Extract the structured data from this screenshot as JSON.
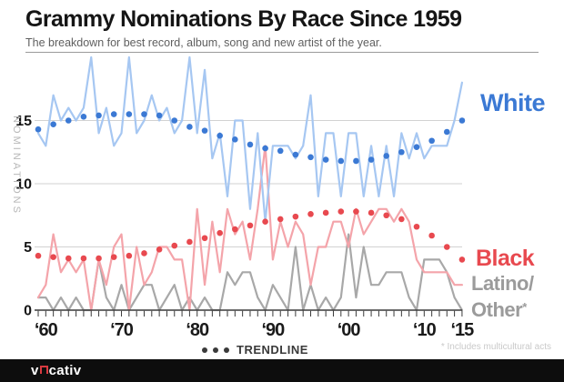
{
  "header": {
    "title": "Grammy Nominations By Race Since 1959",
    "subtitle": "The breakdown for best record, album, song and new artist of the year."
  },
  "chart_data": {
    "type": "line",
    "title": "Grammy Nominations By Race Since 1959",
    "ylabel": "NOMINATIONS",
    "ylim": [
      0,
      20
    ],
    "y_ticks": [
      0,
      5,
      10,
      15
    ],
    "x_range": [
      1959,
      2015
    ],
    "x_step": 1,
    "grid": "horizontal",
    "x_ticks": [
      {
        "year": 1960,
        "label": "‘60"
      },
      {
        "year": 1970,
        "label": "‘70"
      },
      {
        "year": 1980,
        "label": "‘80"
      },
      {
        "year": 1990,
        "label": "‘90"
      },
      {
        "year": 2000,
        "label": "‘00"
      },
      {
        "year": 2010,
        "label": "‘10"
      },
      {
        "year": 2015,
        "label": "‘15"
      }
    ],
    "series": [
      {
        "id": "latino-other",
        "name": "Latino/Other",
        "line_color": "#a8a8a8",
        "values": [
          1,
          1,
          0,
          1,
          0,
          1,
          0,
          0,
          4,
          1,
          0,
          2,
          0,
          1,
          2,
          2,
          0,
          1,
          2,
          0,
          1,
          0,
          1,
          0,
          0,
          3,
          2,
          3,
          3,
          1,
          0,
          2,
          1,
          0,
          5,
          0,
          2,
          0,
          1,
          0,
          1,
          6,
          1,
          5,
          2,
          2,
          3,
          3,
          3,
          1,
          0,
          4,
          4,
          4,
          3,
          1,
          0
        ]
      },
      {
        "id": "black",
        "name": "Black",
        "line_color": "#f4a4aa",
        "values": [
          1,
          2,
          6,
          3,
          4,
          3,
          4,
          0,
          4,
          2,
          5,
          6,
          0,
          5,
          2,
          3,
          5,
          5,
          4,
          4,
          0,
          8,
          2,
          7,
          3,
          8,
          6,
          7,
          4,
          8,
          13,
          4,
          7,
          5,
          7,
          6,
          2,
          5,
          5,
          7,
          7,
          5,
          8,
          6,
          7,
          8,
          8,
          7,
          8,
          7,
          4,
          3,
          3,
          3,
          3,
          2,
          2
        ]
      },
      {
        "id": "white",
        "name": "White",
        "line_color": "#a6c7f2",
        "values": [
          14,
          13,
          17,
          15,
          16,
          15,
          16,
          20,
          14,
          16,
          13,
          14,
          20,
          14,
          15,
          17,
          15,
          16,
          14,
          15,
          20,
          14,
          19,
          12,
          14,
          9,
          15,
          15,
          8,
          14,
          7,
          13,
          13,
          13,
          12,
          13,
          17,
          9,
          14,
          14,
          9,
          14,
          14,
          9,
          13,
          9,
          13,
          9,
          14,
          12,
          14,
          12,
          13,
          13,
          13,
          15,
          18
        ]
      }
    ],
    "trendlines": [
      {
        "series_id": "white",
        "label": "TRENDLINE",
        "color": "#3b79d4",
        "x_start": 1959,
        "x_step": 2,
        "values": [
          14.3,
          14.7,
          15.0,
          15.3,
          15.4,
          15.5,
          15.5,
          15.5,
          15.4,
          15.0,
          14.5,
          14.2,
          13.8,
          13.5,
          13.1,
          12.8,
          12.6,
          12.3,
          12.1,
          11.9,
          11.8,
          11.8,
          11.9,
          12.2,
          12.5,
          12.9,
          13.4,
          14.1,
          15.0
        ]
      },
      {
        "series_id": "black",
        "label": "TRENDLINE",
        "color": "#e8494f",
        "x_start": 1959,
        "x_step": 2,
        "values": [
          4.3,
          4.2,
          4.1,
          4.1,
          4.1,
          4.2,
          4.3,
          4.5,
          4.8,
          5.1,
          5.4,
          5.7,
          6.1,
          6.4,
          6.7,
          7.0,
          7.2,
          7.4,
          7.6,
          7.7,
          7.8,
          7.8,
          7.7,
          7.5,
          7.2,
          6.6,
          5.9,
          5.0,
          4.0
        ]
      }
    ],
    "series_labels": {
      "white": {
        "text": "White",
        "color": "#3b79d4"
      },
      "black": {
        "text": "Black",
        "color": "#e8494f"
      },
      "latino_line1": "Latino/",
      "latino_line2": "Other",
      "latino_asterisk": "*",
      "latino_color": "#9b9b9b"
    },
    "legend": {
      "label": "TRENDLINE"
    },
    "footnote": "* Includes multicultural acts"
  },
  "footer": {
    "brand_prefix": "v",
    "brand_suffix": "cativ"
  }
}
